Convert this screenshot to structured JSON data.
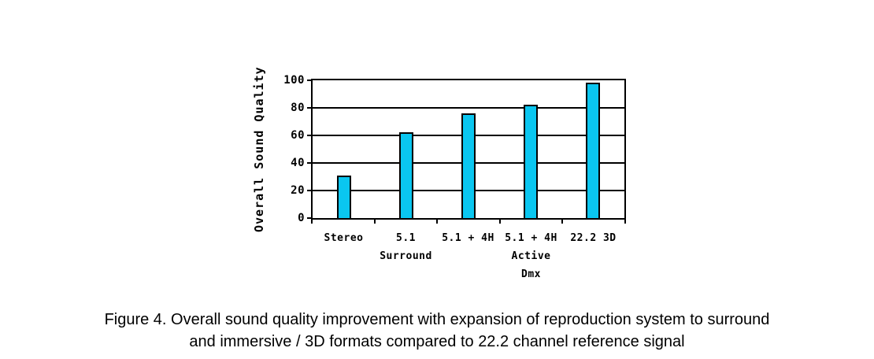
{
  "figure_caption": {
    "line1": "Figure 4. Overall sound quality improvement with expansion of reproduction system to surround",
    "line2": "and immersive / 3D formats compared to 22.2 channel reference signal"
  },
  "chart_data": {
    "type": "bar",
    "title": "",
    "xlabel": "",
    "ylabel": "Overall Sound Quality",
    "categories": [
      "Stereo",
      "5.1 Surround",
      "5.1 + 4H",
      "5.1 + 4H Active Dmx",
      "22.2 3D"
    ],
    "category_label_lines": [
      [
        "Stereo"
      ],
      [
        "5.1",
        "Surround"
      ],
      [
        "5.1 + 4H"
      ],
      [
        "5.1 + 4H",
        "Active",
        "Dmx"
      ],
      [
        "22.2 3D"
      ]
    ],
    "values": [
      31,
      62,
      76,
      82,
      98
    ],
    "ylim": [
      0,
      100
    ],
    "yticks": [
      0,
      20,
      40,
      60,
      80,
      100
    ],
    "grid": true,
    "legend": "none",
    "colors": {
      "bar_fill": "#0AC6F0",
      "bar_border": "#000000",
      "axis": "#000000",
      "grid": "#000000",
      "background": "#FFFFFF",
      "text": "#000000"
    }
  }
}
